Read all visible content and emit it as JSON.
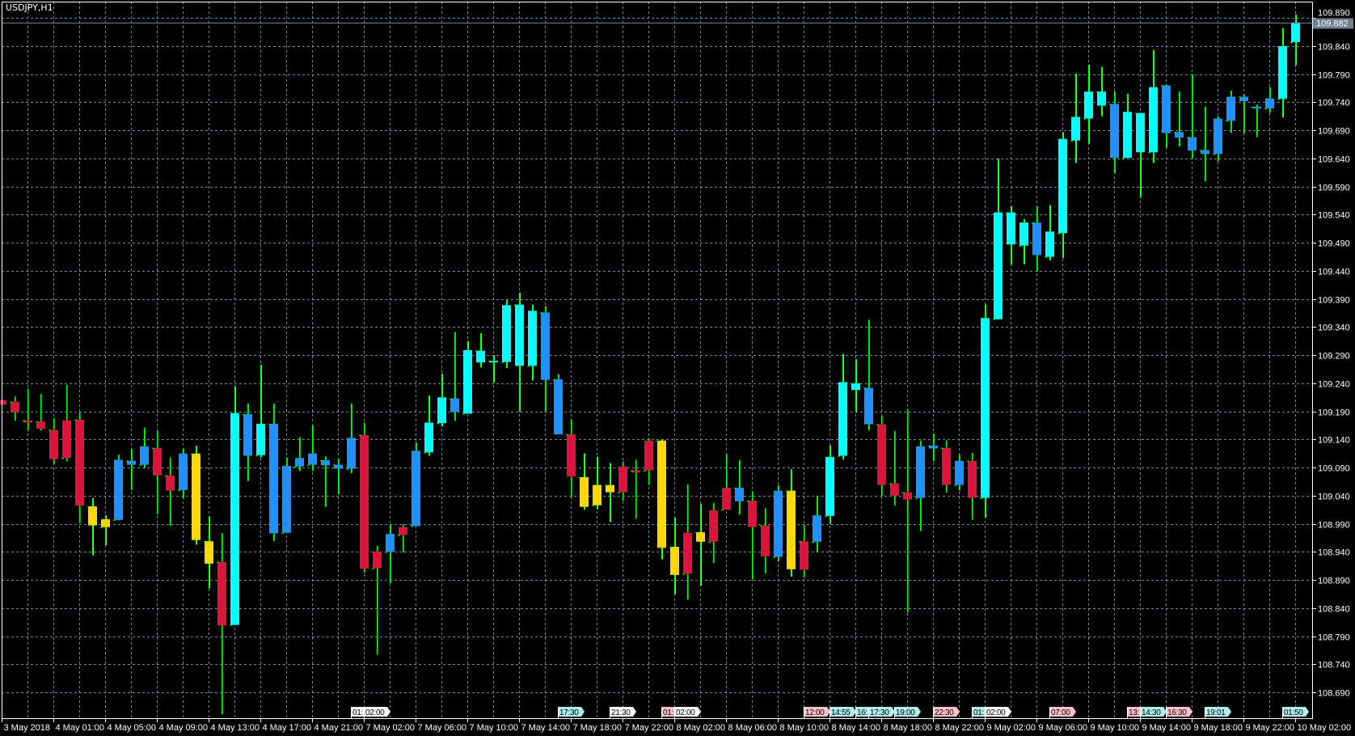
{
  "window": {
    "title": "USDJPY,H1"
  },
  "chart_data": {
    "type": "candlestick",
    "symbol": "USDJPY",
    "timeframe": "H1",
    "grid": true,
    "ylim": [
      108.644,
      109.922
    ],
    "current_price": "109.882",
    "colors": {
      "background": "#000000",
      "grid": "#778899",
      "axis": "#ffffff",
      "wick": "#00ff00",
      "price_line": "#708090",
      "red": "#DC143C",
      "gold": "#FFD700",
      "blue": "#1E90FF",
      "cyan": "#00FFFF",
      "tag_pink": "#FFC0CB",
      "tag_cyan": "#AFEEEE",
      "tag_white": "#FFFFFF"
    },
    "y_ticks": [
      "109.890",
      "109.840",
      "109.790",
      "109.740",
      "109.690",
      "109.640",
      "109.590",
      "109.540",
      "109.490",
      "109.440",
      "109.390",
      "109.340",
      "109.290",
      "109.240",
      "109.190",
      "109.140",
      "109.090",
      "109.040",
      "108.990",
      "108.940",
      "108.890",
      "108.840",
      "108.790",
      "108.740",
      "108.690"
    ],
    "x_ticks": [
      {
        "bar": 0,
        "label": "3 May 2018"
      },
      {
        "bar": 4,
        "label": "4 May 01:00"
      },
      {
        "bar": 8,
        "label": "4 May 05:00"
      },
      {
        "bar": 12,
        "label": "4 May 09:00"
      },
      {
        "bar": 16,
        "label": "4 May 13:00"
      },
      {
        "bar": 20,
        "label": "4 May 17:00"
      },
      {
        "bar": 24,
        "label": "4 May 21:00"
      },
      {
        "bar": 28,
        "label": "7 May 02:00"
      },
      {
        "bar": 32,
        "label": "7 May 06:00"
      },
      {
        "bar": 36,
        "label": "7 May 10:00"
      },
      {
        "bar": 40,
        "label": "7 May 14:00"
      },
      {
        "bar": 44,
        "label": "7 May 18:00"
      },
      {
        "bar": 48,
        "label": "7 May 22:00"
      },
      {
        "bar": 52,
        "label": "8 May 02:00"
      },
      {
        "bar": 56,
        "label": "8 May 06:00"
      },
      {
        "bar": 60,
        "label": "8 May 10:00"
      },
      {
        "bar": 64,
        "label": "8 May 14:00"
      },
      {
        "bar": 68,
        "label": "8 May 18:00"
      },
      {
        "bar": 72,
        "label": "8 May 22:00"
      },
      {
        "bar": 76,
        "label": "9 May 02:00"
      },
      {
        "bar": 80,
        "label": "9 May 06:00"
      },
      {
        "bar": 84,
        "label": "9 May 10:00"
      },
      {
        "bar": 88,
        "label": "9 May 14:00"
      },
      {
        "bar": 92,
        "label": "9 May 18:00"
      },
      {
        "bar": 96,
        "label": "9 May 22:00"
      },
      {
        "bar": 100,
        "label": "10 May 02:00"
      }
    ],
    "session_tags": [
      {
        "bar": 27,
        "text": "01:",
        "color": "tag_white"
      },
      {
        "bar": 28,
        "text": "02:00",
        "color": "tag_white"
      },
      {
        "bar": 43,
        "text": "17:30",
        "color": "tag_cyan"
      },
      {
        "bar": 47,
        "text": "21:30",
        "color": "tag_white"
      },
      {
        "bar": 51,
        "text": "01:",
        "color": "tag_pink"
      },
      {
        "bar": 52,
        "text": "02:00",
        "color": "tag_white"
      },
      {
        "bar": 62,
        "text": "12:00",
        "color": "tag_pink"
      },
      {
        "bar": 64,
        "text": "14:55",
        "color": "tag_cyan"
      },
      {
        "bar": 66,
        "text": "16:",
        "color": "tag_cyan"
      },
      {
        "bar": 67,
        "text": "17:30",
        "color": "tag_cyan"
      },
      {
        "bar": 69,
        "text": "19:00",
        "color": "tag_cyan"
      },
      {
        "bar": 72,
        "text": "22:30",
        "color": "tag_pink"
      },
      {
        "bar": 75,
        "text": "01:",
        "color": "tag_cyan"
      },
      {
        "bar": 76,
        "text": "02:00",
        "color": "tag_white"
      },
      {
        "bar": 81,
        "text": "07:00",
        "color": "tag_pink"
      },
      {
        "bar": 87,
        "text": "13:",
        "color": "tag_pink"
      },
      {
        "bar": 88,
        "text": "14:30",
        "color": "tag_cyan"
      },
      {
        "bar": 90,
        "text": "16:30",
        "color": "tag_pink"
      },
      {
        "bar": 93,
        "text": "19:01",
        "color": "tag_cyan"
      },
      {
        "bar": 99,
        "text": "01:50",
        "color": "tag_cyan"
      }
    ],
    "candles": [
      {
        "o": 109.202,
        "h": 109.211,
        "l": 109.202,
        "c": 109.21,
        "col": "red"
      },
      {
        "o": 109.207,
        "h": 109.217,
        "l": 109.173,
        "c": 109.189,
        "col": "red"
      },
      {
        "o": 109.174,
        "h": 109.23,
        "l": 109.156,
        "c": 109.17,
        "col": "red"
      },
      {
        "o": 109.172,
        "h": 109.221,
        "l": 109.156,
        "c": 109.159,
        "col": "red"
      },
      {
        "o": 109.157,
        "h": 109.178,
        "l": 109.096,
        "c": 109.105,
        "col": "red"
      },
      {
        "o": 109.107,
        "h": 109.237,
        "l": 109.101,
        "c": 109.174,
        "col": "red"
      },
      {
        "o": 109.175,
        "h": 109.188,
        "l": 108.991,
        "c": 109.022,
        "col": "red"
      },
      {
        "o": 109.021,
        "h": 109.036,
        "l": 108.934,
        "c": 108.987,
        "col": "gold"
      },
      {
        "o": 108.984,
        "h": 109.005,
        "l": 108.952,
        "c": 108.998,
        "col": "gold"
      },
      {
        "o": 108.997,
        "h": 109.113,
        "l": 108.996,
        "c": 109.104,
        "col": "blue"
      },
      {
        "o": 109.102,
        "h": 109.123,
        "l": 109.05,
        "c": 109.095,
        "col": "blue"
      },
      {
        "o": 109.095,
        "h": 109.161,
        "l": 109.089,
        "c": 109.128,
        "col": "blue"
      },
      {
        "o": 109.125,
        "h": 109.155,
        "l": 109.007,
        "c": 109.076,
        "col": "red"
      },
      {
        "o": 109.076,
        "h": 109.108,
        "l": 108.986,
        "c": 109.049,
        "col": "red"
      },
      {
        "o": 109.05,
        "h": 109.124,
        "l": 109.035,
        "c": 109.115,
        "col": "blue"
      },
      {
        "o": 109.115,
        "h": 109.129,
        "l": 108.953,
        "c": 108.961,
        "col": "gold"
      },
      {
        "o": 108.959,
        "h": 109.003,
        "l": 108.875,
        "c": 108.919,
        "col": "gold"
      },
      {
        "o": 108.922,
        "h": 108.974,
        "l": 108.651,
        "c": 108.809,
        "col": "red"
      },
      {
        "o": 108.81,
        "h": 109.234,
        "l": 108.81,
        "c": 109.187,
        "col": "cyan"
      },
      {
        "o": 109.185,
        "h": 109.204,
        "l": 109.066,
        "c": 109.111,
        "col": "blue"
      },
      {
        "o": 109.112,
        "h": 109.273,
        "l": 109.108,
        "c": 109.168,
        "col": "cyan"
      },
      {
        "o": 109.168,
        "h": 109.204,
        "l": 108.959,
        "c": 108.973,
        "col": "blue"
      },
      {
        "o": 108.974,
        "h": 109.108,
        "l": 108.974,
        "c": 109.093,
        "col": "blue"
      },
      {
        "o": 109.092,
        "h": 109.144,
        "l": 109.084,
        "c": 109.107,
        "col": "blue"
      },
      {
        "o": 109.095,
        "h": 109.165,
        "l": 109.084,
        "c": 109.115,
        "col": "blue"
      },
      {
        "o": 109.103,
        "h": 109.11,
        "l": 109.02,
        "c": 109.094,
        "col": "blue"
      },
      {
        "o": 109.095,
        "h": 109.106,
        "l": 109.042,
        "c": 109.088,
        "col": "blue"
      },
      {
        "o": 109.088,
        "h": 109.204,
        "l": 109.08,
        "c": 109.143,
        "col": "blue"
      },
      {
        "o": 109.148,
        "h": 109.17,
        "l": 108.903,
        "c": 108.91,
        "col": "red"
      },
      {
        "o": 108.911,
        "h": 108.951,
        "l": 108.757,
        "c": 108.941,
        "col": "red"
      },
      {
        "o": 108.94,
        "h": 108.988,
        "l": 108.884,
        "c": 108.972,
        "col": "blue"
      },
      {
        "o": 108.97,
        "h": 108.989,
        "l": 108.939,
        "c": 108.984,
        "col": "red"
      },
      {
        "o": 108.986,
        "h": 109.135,
        "l": 108.986,
        "c": 109.12,
        "col": "blue"
      },
      {
        "o": 109.117,
        "h": 109.218,
        "l": 109.111,
        "c": 109.17,
        "col": "cyan"
      },
      {
        "o": 109.169,
        "h": 109.257,
        "l": 109.163,
        "c": 109.215,
        "col": "cyan"
      },
      {
        "o": 109.213,
        "h": 109.331,
        "l": 109.173,
        "c": 109.189,
        "col": "blue"
      },
      {
        "o": 109.186,
        "h": 109.315,
        "l": 109.186,
        "c": 109.299,
        "col": "cyan"
      },
      {
        "o": 109.298,
        "h": 109.329,
        "l": 109.268,
        "c": 109.277,
        "col": "cyan"
      },
      {
        "o": 109.28,
        "h": 109.29,
        "l": 109.241,
        "c": 109.28,
        "col": "cyan"
      },
      {
        "o": 109.278,
        "h": 109.388,
        "l": 109.267,
        "c": 109.379,
        "col": "cyan"
      },
      {
        "o": 109.38,
        "h": 109.401,
        "l": 109.189,
        "c": 109.271,
        "col": "cyan"
      },
      {
        "o": 109.271,
        "h": 109.38,
        "l": 109.245,
        "c": 109.369,
        "col": "cyan"
      },
      {
        "o": 109.366,
        "h": 109.377,
        "l": 109.189,
        "c": 109.246,
        "col": "blue"
      },
      {
        "o": 109.247,
        "h": 109.256,
        "l": 109.149,
        "c": 109.149,
        "col": "blue"
      },
      {
        "o": 109.149,
        "h": 109.176,
        "l": 109.037,
        "c": 109.074,
        "col": "red"
      },
      {
        "o": 109.073,
        "h": 109.115,
        "l": 109.015,
        "c": 109.02,
        "col": "gold"
      },
      {
        "o": 109.023,
        "h": 109.109,
        "l": 109.016,
        "c": 109.059,
        "col": "gold"
      },
      {
        "o": 109.059,
        "h": 109.098,
        "l": 108.993,
        "c": 109.046,
        "col": "gold"
      },
      {
        "o": 109.046,
        "h": 109.101,
        "l": 109.031,
        "c": 109.092,
        "col": "red"
      },
      {
        "o": 109.085,
        "h": 109.104,
        "l": 108.999,
        "c": 109.081,
        "col": "red"
      },
      {
        "o": 109.085,
        "h": 109.142,
        "l": 109.059,
        "c": 109.138,
        "col": "red"
      },
      {
        "o": 109.138,
        "h": 109.14,
        "l": 108.927,
        "c": 108.947,
        "col": "gold"
      },
      {
        "o": 108.949,
        "h": 109.001,
        "l": 108.865,
        "c": 108.899,
        "col": "gold"
      },
      {
        "o": 108.901,
        "h": 109.06,
        "l": 108.855,
        "c": 108.974,
        "col": "red"
      },
      {
        "o": 108.975,
        "h": 109.025,
        "l": 108.88,
        "c": 108.958,
        "col": "gold"
      },
      {
        "o": 108.958,
        "h": 109.027,
        "l": 108.92,
        "c": 109.014,
        "col": "red"
      },
      {
        "o": 109.015,
        "h": 109.114,
        "l": 109.015,
        "c": 109.054,
        "col": "red"
      },
      {
        "o": 109.054,
        "h": 109.103,
        "l": 109.006,
        "c": 109.03,
        "col": "blue"
      },
      {
        "o": 109.031,
        "h": 109.048,
        "l": 108.891,
        "c": 108.984,
        "col": "red"
      },
      {
        "o": 108.987,
        "h": 109.018,
        "l": 108.901,
        "c": 108.932,
        "col": "red"
      },
      {
        "o": 108.931,
        "h": 109.059,
        "l": 108.923,
        "c": 109.049,
        "col": "blue"
      },
      {
        "o": 109.049,
        "h": 109.087,
        "l": 108.896,
        "c": 108.909,
        "col": "gold"
      },
      {
        "o": 108.959,
        "h": 108.988,
        "l": 108.894,
        "c": 108.908,
        "col": "red"
      },
      {
        "o": 108.958,
        "h": 109.039,
        "l": 108.94,
        "c": 109.005,
        "col": "blue"
      },
      {
        "o": 109.004,
        "h": 109.129,
        "l": 108.989,
        "c": 109.109,
        "col": "cyan"
      },
      {
        "o": 109.111,
        "h": 109.292,
        "l": 109.104,
        "c": 109.242,
        "col": "cyan"
      },
      {
        "o": 109.24,
        "h": 109.283,
        "l": 109.189,
        "c": 109.228,
        "col": "cyan"
      },
      {
        "o": 109.232,
        "h": 109.353,
        "l": 109.156,
        "c": 109.167,
        "col": "blue"
      },
      {
        "o": 109.167,
        "h": 109.182,
        "l": 109.039,
        "c": 109.059,
        "col": "red"
      },
      {
        "o": 109.062,
        "h": 109.155,
        "l": 109.022,
        "c": 109.04,
        "col": "red"
      },
      {
        "o": 109.046,
        "h": 109.194,
        "l": 108.832,
        "c": 109.033,
        "col": "red"
      },
      {
        "o": 109.036,
        "h": 109.138,
        "l": 108.977,
        "c": 109.128,
        "col": "blue"
      },
      {
        "o": 109.129,
        "h": 109.15,
        "l": 109.101,
        "c": 109.124,
        "col": "blue"
      },
      {
        "o": 109.125,
        "h": 109.138,
        "l": 109.045,
        "c": 109.059,
        "col": "red"
      },
      {
        "o": 109.059,
        "h": 109.113,
        "l": 109.049,
        "c": 109.102,
        "col": "blue"
      },
      {
        "o": 109.102,
        "h": 109.116,
        "l": 108.997,
        "c": 109.036,
        "col": "red"
      },
      {
        "o": 109.036,
        "h": 109.38,
        "l": 109.001,
        "c": 109.356,
        "col": "cyan"
      },
      {
        "o": 109.354,
        "h": 109.64,
        "l": 109.353,
        "c": 109.544,
        "col": "cyan"
      },
      {
        "o": 109.544,
        "h": 109.555,
        "l": 109.451,
        "c": 109.487,
        "col": "cyan"
      },
      {
        "o": 109.485,
        "h": 109.532,
        "l": 109.452,
        "c": 109.526,
        "col": "cyan"
      },
      {
        "o": 109.526,
        "h": 109.555,
        "l": 109.439,
        "c": 109.468,
        "col": "blue"
      },
      {
        "o": 109.465,
        "h": 109.557,
        "l": 109.459,
        "c": 109.51,
        "col": "cyan"
      },
      {
        "o": 109.507,
        "h": 109.687,
        "l": 109.463,
        "c": 109.675,
        "col": "cyan"
      },
      {
        "o": 109.672,
        "h": 109.791,
        "l": 109.632,
        "c": 109.714,
        "col": "cyan"
      },
      {
        "o": 109.711,
        "h": 109.807,
        "l": 109.666,
        "c": 109.759,
        "col": "cyan"
      },
      {
        "o": 109.759,
        "h": 109.803,
        "l": 109.715,
        "c": 109.734,
        "col": "cyan"
      },
      {
        "o": 109.737,
        "h": 109.759,
        "l": 109.614,
        "c": 109.641,
        "col": "blue"
      },
      {
        "o": 109.641,
        "h": 109.755,
        "l": 109.641,
        "c": 109.723,
        "col": "cyan"
      },
      {
        "o": 109.721,
        "h": 109.721,
        "l": 109.571,
        "c": 109.651,
        "col": "cyan"
      },
      {
        "o": 109.651,
        "h": 109.833,
        "l": 109.632,
        "c": 109.767,
        "col": "cyan"
      },
      {
        "o": 109.77,
        "h": 109.772,
        "l": 109.659,
        "c": 109.685,
        "col": "blue"
      },
      {
        "o": 109.687,
        "h": 109.759,
        "l": 109.661,
        "c": 109.677,
        "col": "blue"
      },
      {
        "o": 109.678,
        "h": 109.79,
        "l": 109.64,
        "c": 109.654,
        "col": "blue"
      },
      {
        "o": 109.655,
        "h": 109.732,
        "l": 109.599,
        "c": 109.648,
        "col": "blue"
      },
      {
        "o": 109.648,
        "h": 109.715,
        "l": 109.635,
        "c": 109.711,
        "col": "blue"
      },
      {
        "o": 109.707,
        "h": 109.761,
        "l": 109.686,
        "c": 109.75,
        "col": "blue"
      },
      {
        "o": 109.75,
        "h": 109.754,
        "l": 109.685,
        "c": 109.742,
        "col": "blue"
      },
      {
        "o": 109.732,
        "h": 109.736,
        "l": 109.678,
        "c": 109.729,
        "col": "blue"
      },
      {
        "o": 109.729,
        "h": 109.767,
        "l": 109.721,
        "c": 109.747,
        "col": "blue"
      },
      {
        "o": 109.746,
        "h": 109.872,
        "l": 109.713,
        "c": 109.84,
        "col": "cyan"
      },
      {
        "o": 109.847,
        "h": 109.896,
        "l": 109.806,
        "c": 109.882,
        "col": "cyan"
      }
    ]
  }
}
